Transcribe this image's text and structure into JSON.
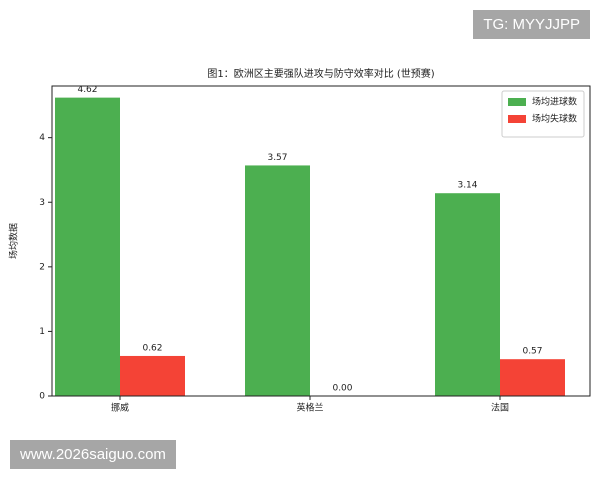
{
  "chart_data": {
    "type": "bar",
    "title": "图1：欧洲区主要强队进攻与防守效率对比 (世预赛)",
    "ylabel": "场均数据",
    "categories": [
      "挪威",
      "英格兰",
      "法国"
    ],
    "series": [
      {
        "name": "场均进球数",
        "color": "#4caf50",
        "values": [
          4.62,
          3.57,
          3.14
        ]
      },
      {
        "name": "场均失球数",
        "color": "#f44336",
        "values": [
          0.62,
          0,
          0.57
        ],
        "value_labels": [
          "0.62",
          "0.00",
          "0.57"
        ]
      }
    ],
    "ylim": [
      0,
      4.8
    ],
    "yticks": [
      0,
      1,
      2,
      3,
      4
    ],
    "legend": "upper right"
  },
  "watermarks": [
    "TG: MYYJJPP",
    "www.2026saiguo.com"
  ]
}
